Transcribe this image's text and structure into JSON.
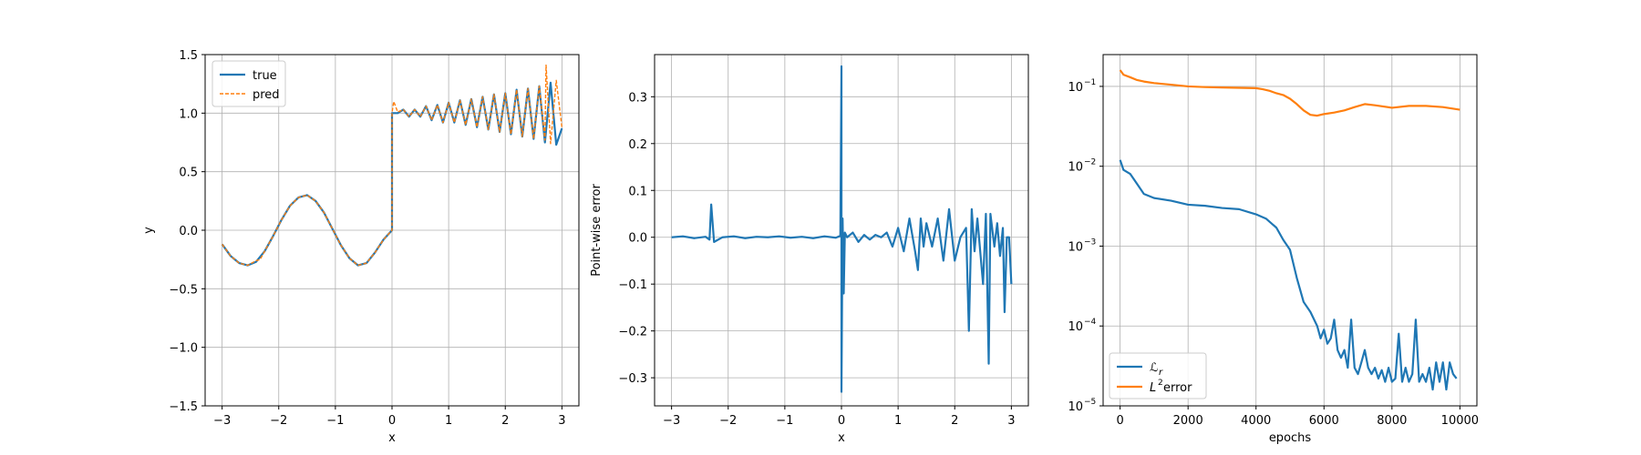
{
  "colors": {
    "blue": "#1f77b4",
    "orange": "#ff7f0e",
    "grid": "#b0b0b0",
    "legend_edge": "#cccccc"
  },
  "chart_data": [
    {
      "type": "line",
      "title": "",
      "xlabel": "x",
      "ylabel": "y",
      "xlim": [
        -3.3,
        3.3
      ],
      "ylim": [
        -1.5,
        1.5
      ],
      "x_ticks": [
        -3,
        -2,
        -1,
        0,
        1,
        2,
        3
      ],
      "x_tick_labels": [
        "−3",
        "−2",
        "−1",
        "0",
        "1",
        "2",
        "3"
      ],
      "y_ticks": [
        -1.5,
        -1.0,
        -0.5,
        0.0,
        0.5,
        1.0,
        1.5
      ],
      "y_tick_labels": [
        "−1.5",
        "−1.0",
        "−0.5",
        "0.0",
        "0.5",
        "1.0",
        "1.5"
      ],
      "grid": true,
      "legend_position": "upper-left",
      "series": [
        {
          "name": "true",
          "style": "solid",
          "x": [
            -3.0,
            -2.85,
            -2.7,
            -2.55,
            -2.4,
            -2.25,
            -2.1,
            -1.95,
            -1.8,
            -1.65,
            -1.5,
            -1.35,
            -1.2,
            -1.05,
            -0.9,
            -0.75,
            -0.6,
            -0.45,
            -0.3,
            -0.15,
            0.0,
            0.0,
            0.1,
            0.2,
            0.3,
            0.4,
            0.5,
            0.6,
            0.7,
            0.8,
            0.9,
            1.0,
            1.1,
            1.2,
            1.3,
            1.4,
            1.5,
            1.6,
            1.7,
            1.8,
            1.9,
            2.0,
            2.1,
            2.2,
            2.3,
            2.4,
            2.5,
            2.6,
            2.7,
            2.8,
            2.9,
            3.0
          ],
          "y": [
            -0.12,
            -0.22,
            -0.28,
            -0.3,
            -0.27,
            -0.18,
            -0.05,
            0.09,
            0.21,
            0.28,
            0.3,
            0.25,
            0.15,
            0.01,
            -0.13,
            -0.24,
            -0.3,
            -0.28,
            -0.19,
            -0.08,
            0.0,
            1.0,
            1.0,
            1.03,
            0.97,
            1.03,
            0.97,
            1.06,
            0.94,
            1.07,
            0.92,
            1.09,
            0.92,
            1.11,
            0.9,
            1.12,
            0.88,
            1.14,
            0.86,
            1.16,
            0.84,
            1.17,
            0.82,
            1.2,
            0.8,
            1.21,
            0.78,
            1.23,
            0.75,
            1.26,
            0.73,
            0.87
          ]
        },
        {
          "name": "pred",
          "style": "dashed",
          "x": [
            -3.0,
            -2.85,
            -2.7,
            -2.55,
            -2.4,
            -2.33,
            -2.25,
            -2.1,
            -1.95,
            -1.8,
            -1.65,
            -1.5,
            -1.35,
            -1.2,
            -1.05,
            -0.9,
            -0.75,
            -0.6,
            -0.45,
            -0.3,
            -0.15,
            0.0,
            0.0,
            0.03,
            0.1,
            0.2,
            0.3,
            0.4,
            0.5,
            0.6,
            0.7,
            0.8,
            0.9,
            1.0,
            1.1,
            1.2,
            1.3,
            1.4,
            1.5,
            1.6,
            1.7,
            1.8,
            1.9,
            2.0,
            2.1,
            2.2,
            2.3,
            2.4,
            2.5,
            2.6,
            2.7,
            2.72,
            2.8,
            2.9,
            3.0
          ],
          "y": [
            -0.12,
            -0.22,
            -0.28,
            -0.3,
            -0.26,
            -0.25,
            -0.18,
            -0.05,
            0.09,
            0.21,
            0.28,
            0.3,
            0.25,
            0.15,
            0.01,
            -0.13,
            -0.24,
            -0.3,
            -0.28,
            -0.19,
            -0.08,
            0.0,
            1.0,
            1.1,
            1.01,
            1.03,
            0.97,
            1.03,
            0.97,
            1.06,
            0.94,
            1.07,
            0.92,
            1.09,
            0.92,
            1.11,
            0.9,
            1.12,
            0.88,
            1.14,
            0.86,
            1.16,
            0.84,
            1.17,
            0.82,
            1.2,
            0.8,
            1.21,
            0.78,
            1.23,
            0.77,
            1.41,
            0.74,
            1.28,
            0.88
          ]
        }
      ]
    },
    {
      "type": "line",
      "title": "",
      "xlabel": "x",
      "ylabel": "Point-wise error",
      "xlim": [
        -3.3,
        3.3
      ],
      "ylim": [
        -0.36,
        0.39
      ],
      "x_ticks": [
        -3,
        -2,
        -1,
        0,
        1,
        2,
        3
      ],
      "x_tick_labels": [
        "−3",
        "−2",
        "−1",
        "0",
        "1",
        "2",
        "3"
      ],
      "y_ticks": [
        -0.3,
        -0.2,
        -0.1,
        0.0,
        0.1,
        0.2,
        0.3
      ],
      "y_tick_labels": [
        "−0.3",
        "−0.2",
        "−0.1",
        "0.0",
        "0.1",
        "0.2",
        "0.3"
      ],
      "grid": true,
      "series": [
        {
          "name": "",
          "x": [
            -3.0,
            -2.8,
            -2.6,
            -2.4,
            -2.33,
            -2.3,
            -2.25,
            -2.1,
            -1.9,
            -1.7,
            -1.5,
            -1.3,
            -1.1,
            -0.9,
            -0.7,
            -0.5,
            -0.3,
            -0.1,
            -0.02,
            0.0,
            0.0,
            0.02,
            0.04,
            0.06,
            0.1,
            0.2,
            0.3,
            0.4,
            0.5,
            0.6,
            0.7,
            0.8,
            0.9,
            1.0,
            1.1,
            1.2,
            1.3,
            1.35,
            1.4,
            1.45,
            1.5,
            1.6,
            1.7,
            1.8,
            1.9,
            2.0,
            2.1,
            2.2,
            2.25,
            2.3,
            2.35,
            2.4,
            2.5,
            2.55,
            2.6,
            2.63,
            2.7,
            2.75,
            2.8,
            2.85,
            2.88,
            2.92,
            2.96,
            3.0
          ],
          "y": [
            0.0,
            0.002,
            -0.002,
            0.001,
            -0.005,
            0.07,
            -0.01,
            0.0,
            0.002,
            -0.002,
            0.001,
            0.0,
            0.002,
            -0.001,
            0.001,
            -0.002,
            0.002,
            -0.001,
            0.003,
            0.365,
            -0.33,
            0.04,
            -0.12,
            0.01,
            0.0,
            0.01,
            -0.01,
            0.005,
            -0.005,
            0.005,
            0.0,
            0.01,
            -0.02,
            0.02,
            -0.03,
            0.04,
            -0.03,
            -0.07,
            0.04,
            -0.02,
            0.03,
            -0.02,
            0.04,
            -0.05,
            0.06,
            -0.05,
            0.0,
            0.02,
            -0.2,
            0.06,
            -0.03,
            0.04,
            -0.1,
            0.05,
            -0.27,
            0.05,
            -0.02,
            0.03,
            -0.04,
            0.02,
            -0.16,
            0.0,
            0.0,
            -0.1
          ]
        }
      ]
    },
    {
      "type": "line",
      "title": "",
      "xlabel": "epochs",
      "ylabel": "",
      "log_y": true,
      "xlim": [
        -500,
        10500
      ],
      "ylim": [
        1e-05,
        0.25
      ],
      "x_ticks": [
        0,
        2000,
        4000,
        6000,
        8000,
        10000
      ],
      "x_tick_labels": [
        "0",
        "2000",
        "4000",
        "6000",
        "8000",
        "10000"
      ],
      "y_ticks": [
        1e-05,
        0.0001,
        0.001,
        0.01,
        0.1
      ],
      "y_tick_labels": [
        "10",
        "10",
        "10",
        "10",
        "10"
      ],
      "y_tick_exponents": [
        "−5",
        "−4",
        "−3",
        "−2",
        "−1"
      ],
      "grid": true,
      "legend_position": "lower-left",
      "series": [
        {
          "name": "ℒ",
          "name_subscript": "r",
          "x": [
            0,
            100,
            300,
            500,
            700,
            1000,
            1500,
            2000,
            2500,
            3000,
            3500,
            4000,
            4300,
            4600,
            4800,
            5000,
            5200,
            5400,
            5600,
            5800,
            5900,
            6000,
            6100,
            6200,
            6300,
            6400,
            6500,
            6600,
            6700,
            6800,
            6900,
            7000,
            7100,
            7200,
            7300,
            7400,
            7500,
            7600,
            7700,
            7800,
            7900,
            8000,
            8100,
            8200,
            8300,
            8400,
            8500,
            8600,
            8700,
            8800,
            8900,
            9000,
            9100,
            9200,
            9300,
            9400,
            9500,
            9600,
            9700,
            9800,
            9900
          ],
          "y": [
            0.012,
            0.009,
            0.008,
            0.006,
            0.0045,
            0.004,
            0.0037,
            0.0033,
            0.0032,
            0.003,
            0.0029,
            0.0025,
            0.0022,
            0.0017,
            0.0012,
            0.0009,
            0.0004,
            0.0002,
            0.00015,
            0.0001,
            7e-05,
            9e-05,
            6e-05,
            7e-05,
            0.00012,
            5e-05,
            4e-05,
            5e-05,
            3e-05,
            0.00012,
            3e-05,
            2.5e-05,
            3.5e-05,
            5e-05,
            3e-05,
            2.5e-05,
            3e-05,
            2.2e-05,
            2.8e-05,
            2e-05,
            3e-05,
            2e-05,
            2.2e-05,
            8e-05,
            2e-05,
            3e-05,
            2e-05,
            2.5e-05,
            0.00012,
            2e-05,
            2.5e-05,
            2e-05,
            3e-05,
            1.6e-05,
            3.5e-05,
            2e-05,
            3.5e-05,
            1.6e-05,
            3.5e-05,
            2.5e-05,
            2.2e-05
          ]
        },
        {
          "name": "L",
          "name_superscript": "2",
          "name_suffix": " error",
          "x": [
            0,
            100,
            300,
            500,
            700,
            1000,
            1500,
            2000,
            2500,
            3000,
            3500,
            4000,
            4200,
            4400,
            4600,
            4800,
            5000,
            5200,
            5400,
            5600,
            5800,
            6000,
            6300,
            6600,
            6900,
            7200,
            7500,
            8000,
            8500,
            9000,
            9500,
            10000
          ],
          "y": [
            0.16,
            0.14,
            0.13,
            0.12,
            0.115,
            0.11,
            0.105,
            0.1,
            0.098,
            0.097,
            0.096,
            0.095,
            0.092,
            0.088,
            0.082,
            0.078,
            0.07,
            0.06,
            0.05,
            0.044,
            0.043,
            0.045,
            0.047,
            0.05,
            0.055,
            0.06,
            0.058,
            0.054,
            0.057,
            0.057,
            0.055,
            0.051
          ]
        }
      ]
    }
  ]
}
